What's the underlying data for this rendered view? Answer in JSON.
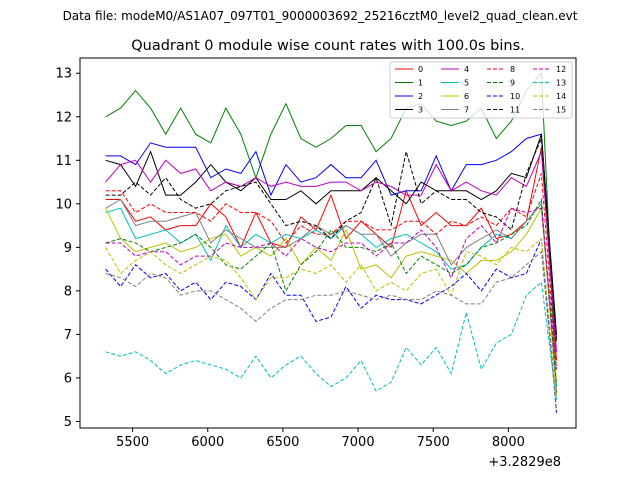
{
  "figure": {
    "suptitle": "Data file: modeM0/AS1A07_097T01_9000003692_25216cztM0_level2_quad_clean.evt"
  },
  "chart_data": {
    "type": "line",
    "title": "Quadrant 0 module wise count rates with 100.0s bins.",
    "xlabel": "",
    "ylabel": "",
    "x_offset_label": "+3.2829e8",
    "xlim": [
      5150,
      8450
    ],
    "ylim": [
      4.85,
      13.35
    ],
    "xticks": [
      5500,
      6000,
      6500,
      7000,
      7500,
      8000
    ],
    "yticks": [
      5,
      6,
      7,
      8,
      9,
      10,
      11,
      12,
      13
    ],
    "grid": false,
    "legend_placement": "top-right",
    "x": [
      5320,
      5420,
      5520,
      5620,
      5720,
      5820,
      5920,
      6020,
      6120,
      6220,
      6320,
      6420,
      6520,
      6620,
      6720,
      6820,
      6920,
      7020,
      7120,
      7220,
      7320,
      7420,
      7520,
      7620,
      7720,
      7820,
      7920,
      8020,
      8120,
      8220,
      8320
    ],
    "series": [
      {
        "name": "0",
        "color": "#ff0000",
        "dash": false,
        "values": [
          10.1,
          10.1,
          9.6,
          9.7,
          9.4,
          9.5,
          9.5,
          10.0,
          9.7,
          9.0,
          9.8,
          9.1,
          9.0,
          9.7,
          9.4,
          10.2,
          9.2,
          9.6,
          9.3,
          9.0,
          10.3,
          9.5,
          9.8,
          9.5,
          9.5,
          9.9,
          9.2,
          9.3,
          9.6,
          11.3,
          6.4
        ]
      },
      {
        "name": "1",
        "color": "#008000",
        "dash": false,
        "values": [
          12.0,
          12.2,
          12.6,
          12.2,
          11.6,
          12.2,
          11.6,
          11.4,
          12.2,
          11.6,
          10.6,
          11.6,
          12.3,
          11.5,
          11.3,
          11.5,
          11.8,
          11.8,
          11.2,
          11.5,
          12.2,
          12.3,
          11.9,
          11.8,
          11.9,
          12.2,
          11.5,
          11.9,
          12.6,
          13.0,
          5.6
        ]
      },
      {
        "name": "2",
        "color": "#0000ff",
        "dash": false,
        "values": [
          11.1,
          11.1,
          10.9,
          11.4,
          11.3,
          11.3,
          11.3,
          10.6,
          10.8,
          10.7,
          11.2,
          10.2,
          10.9,
          10.5,
          10.6,
          10.9,
          10.6,
          10.6,
          11.0,
          10.2,
          10.3,
          10.3,
          11.1,
          10.3,
          10.9,
          10.9,
          11.0,
          11.2,
          11.5,
          11.6,
          6.9
        ]
      },
      {
        "name": "3",
        "color": "#000000",
        "dash": false,
        "values": [
          11.0,
          10.9,
          10.4,
          11.2,
          10.2,
          10.2,
          10.5,
          10.9,
          10.5,
          10.3,
          10.6,
          10.1,
          10.1,
          10.3,
          10.0,
          10.3,
          10.3,
          10.3,
          10.6,
          10.3,
          10.0,
          10.5,
          10.3,
          10.3,
          10.3,
          10.1,
          10.3,
          10.7,
          10.6,
          11.6,
          7.0
        ]
      },
      {
        "name": "4",
        "color": "#bf00bf",
        "dash": false,
        "values": [
          10.5,
          10.9,
          11.0,
          10.5,
          11.0,
          10.7,
          10.8,
          10.3,
          10.5,
          10.4,
          10.6,
          10.4,
          10.5,
          10.4,
          10.4,
          10.5,
          10.5,
          10.3,
          10.5,
          10.4,
          10.2,
          10.2,
          10.9,
          10.3,
          10.5,
          10.3,
          10.2,
          10.6,
          10.4,
          11.2,
          6.6
        ]
      },
      {
        "name": "5",
        "color": "#00bfbf",
        "dash": false,
        "values": [
          9.8,
          9.9,
          9.2,
          9.3,
          9.4,
          9.1,
          9.3,
          8.7,
          9.5,
          9.0,
          9.3,
          9.1,
          9.3,
          9.2,
          9.4,
          9.2,
          9.5,
          9.3,
          9.0,
          9.2,
          9.3,
          9.1,
          8.9,
          8.5,
          8.6,
          9.0,
          9.3,
          9.2,
          9.6,
          10.0,
          5.8
        ]
      },
      {
        "name": "6",
        "color": "#bfbf00",
        "dash": false,
        "values": [
          9.9,
          9.2,
          8.9,
          9.0,
          9.1,
          8.9,
          9.0,
          9.2,
          9.3,
          8.8,
          9.0,
          8.8,
          9.2,
          8.6,
          9.0,
          8.7,
          9.4,
          8.5,
          8.6,
          8.3,
          8.8,
          8.9,
          8.8,
          8.7,
          8.4,
          8.7,
          8.7,
          8.9,
          9.3,
          9.9,
          5.9
        ]
      },
      {
        "name": "7",
        "color": "#808080",
        "dash": false,
        "values": [
          9.9,
          10.1,
          9.5,
          9.6,
          9.6,
          9.7,
          9.8,
          9.1,
          9.4,
          9.2,
          9.0,
          9.0,
          9.0,
          9.2,
          9.5,
          9.3,
          9.5,
          9.3,
          9.3,
          8.8,
          9.1,
          9.3,
          9.3,
          8.6,
          9.0,
          9.2,
          9.4,
          9.2,
          9.6,
          10.0,
          5.7
        ]
      },
      {
        "name": "8",
        "color": "#ff0000",
        "dash": true,
        "values": [
          10.3,
          10.3,
          9.8,
          10.0,
          9.8,
          9.8,
          9.8,
          9.6,
          10.0,
          9.8,
          9.8,
          9.6,
          9.1,
          9.5,
          9.3,
          9.3,
          9.6,
          9.6,
          9.4,
          9.4,
          9.6,
          9.6,
          9.3,
          9.6,
          9.5,
          9.7,
          9.5,
          9.9,
          9.7,
          10.7,
          6.2
        ]
      },
      {
        "name": "9",
        "color": "#008000",
        "dash": true,
        "values": [
          9.1,
          9.2,
          9.1,
          8.9,
          9.0,
          9.1,
          9.3,
          9.0,
          8.6,
          8.5,
          8.8,
          9.1,
          8.0,
          8.6,
          8.9,
          9.4,
          9.0,
          9.0,
          8.9,
          9.1,
          8.4,
          8.8,
          8.6,
          8.4,
          8.6,
          9.0,
          9.1,
          9.3,
          9.5,
          10.1,
          5.8
        ]
      },
      {
        "name": "10",
        "color": "#0000ff",
        "dash": true,
        "values": [
          8.5,
          8.1,
          8.6,
          8.3,
          8.4,
          8.0,
          8.2,
          7.8,
          8.2,
          8.1,
          7.8,
          8.4,
          7.9,
          7.9,
          7.3,
          7.4,
          8.1,
          7.6,
          7.9,
          7.8,
          7.8,
          7.7,
          7.9,
          8.1,
          8.4,
          8.0,
          8.5,
          8.3,
          8.4,
          9.2,
          5.2
        ]
      },
      {
        "name": "11",
        "color": "#000000",
        "dash": true,
        "values": [
          10.2,
          10.2,
          10.5,
          10.2,
          10.6,
          10.1,
          9.9,
          10.0,
          10.3,
          10.4,
          10.5,
          10.0,
          9.5,
          9.6,
          9.5,
          9.2,
          9.6,
          9.8,
          10.6,
          9.5,
          11.2,
          10.0,
          10.3,
          10.1,
          10.1,
          9.8,
          9.7,
          9.4,
          10.7,
          11.5,
          6.8
        ]
      },
      {
        "name": "12",
        "color": "#bf00bf",
        "dash": true,
        "values": [
          9.1,
          9.1,
          8.8,
          8.9,
          8.9,
          8.6,
          8.8,
          8.8,
          9.1,
          9.0,
          9.0,
          9.1,
          8.8,
          9.2,
          9.0,
          8.9,
          9.1,
          9.1,
          8.8,
          9.1,
          9.1,
          9.4,
          9.0,
          8.3,
          9.2,
          9.5,
          9.1,
          9.9,
          9.8,
          9.9,
          6.2
        ]
      },
      {
        "name": "13",
        "color": "#00bfbf",
        "dash": true,
        "values": [
          6.6,
          6.5,
          6.6,
          6.4,
          6.1,
          6.3,
          6.4,
          6.3,
          6.2,
          6.0,
          6.5,
          6.0,
          6.3,
          6.5,
          6.1,
          5.8,
          6.0,
          6.4,
          5.7,
          5.9,
          6.7,
          6.3,
          6.7,
          6.1,
          7.5,
          6.2,
          6.8,
          7.0,
          7.9,
          8.2,
          5.5
        ]
      },
      {
        "name": "14",
        "color": "#bfbf00",
        "dash": true,
        "values": [
          9.0,
          8.4,
          8.7,
          8.9,
          8.6,
          8.4,
          8.6,
          8.8,
          8.7,
          8.3,
          7.8,
          8.3,
          8.3,
          8.5,
          8.4,
          8.6,
          8.2,
          8.6,
          8.0,
          8.2,
          8.0,
          8.4,
          8.5,
          7.9,
          8.9,
          8.8,
          8.6,
          9.0,
          8.9,
          9.2,
          5.6
        ]
      },
      {
        "name": "15",
        "color": "#808080",
        "dash": true,
        "values": [
          8.4,
          8.3,
          8.1,
          8.4,
          8.3,
          7.9,
          8.0,
          8.0,
          7.8,
          7.6,
          7.3,
          7.6,
          7.8,
          7.8,
          7.9,
          7.9,
          8.0,
          7.9,
          7.8,
          7.9,
          7.8,
          7.8,
          8.0,
          7.9,
          7.7,
          7.7,
          8.2,
          8.3,
          8.6,
          8.9,
          5.3
        ]
      }
    ]
  }
}
